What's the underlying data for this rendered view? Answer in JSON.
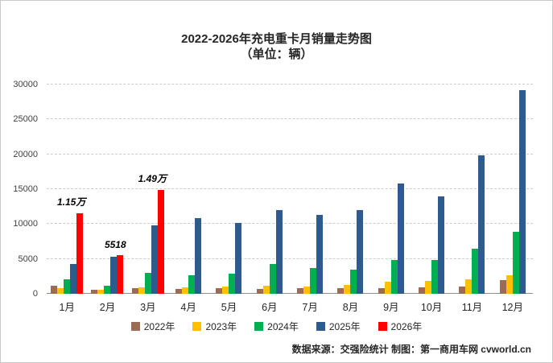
{
  "title": {
    "line1": "2022-2026年充电重卡月销量走势图",
    "line2": "（单位：辆）"
  },
  "chart_data": {
    "type": "bar",
    "categories": [
      "1月",
      "2月",
      "3月",
      "4月",
      "5月",
      "6月",
      "7月",
      "8月",
      "9月",
      "10月",
      "11月",
      "12月"
    ],
    "series": [
      {
        "name": "2022年",
        "color": "#9c6b55",
        "values": [
          1200,
          600,
          800,
          700,
          800,
          700,
          800,
          800,
          800,
          900,
          1000,
          2000
        ]
      },
      {
        "name": "2023年",
        "color": "#ffc000",
        "values": [
          800,
          600,
          900,
          900,
          1000,
          1150,
          1050,
          1250,
          1700,
          1850,
          2100,
          2650
        ]
      },
      {
        "name": "2024年",
        "color": "#00b050",
        "values": [
          2100,
          1100,
          3000,
          2650,
          2850,
          4250,
          3700,
          3450,
          4850,
          4850,
          6500,
          8900
        ]
      },
      {
        "name": "2025年",
        "color": "#2e5b8f",
        "values": [
          4300,
          5300,
          9800,
          10800,
          10100,
          12000,
          11300,
          12000,
          15800,
          14000,
          19900,
          29200
        ]
      },
      {
        "name": "2026年",
        "color": "#ff0000",
        "values": [
          11500,
          5518,
          14900,
          null,
          null,
          null,
          null,
          null,
          null,
          null,
          null,
          null
        ]
      }
    ],
    "ylim": [
      0,
      30000
    ],
    "yticks": [
      0,
      5000,
      10000,
      15000,
      20000,
      25000,
      30000
    ],
    "annotations": [
      {
        "month_index": 0,
        "text": "1.15万"
      },
      {
        "month_index": 1,
        "text": "5518"
      },
      {
        "month_index": 2,
        "text": "1.49万"
      }
    ],
    "grid": "dashed-horizontal",
    "legend_position": "bottom"
  },
  "footer": {
    "text": "数据来源：交强险统计 制图：第一商用车网 cvworld.cn"
  }
}
